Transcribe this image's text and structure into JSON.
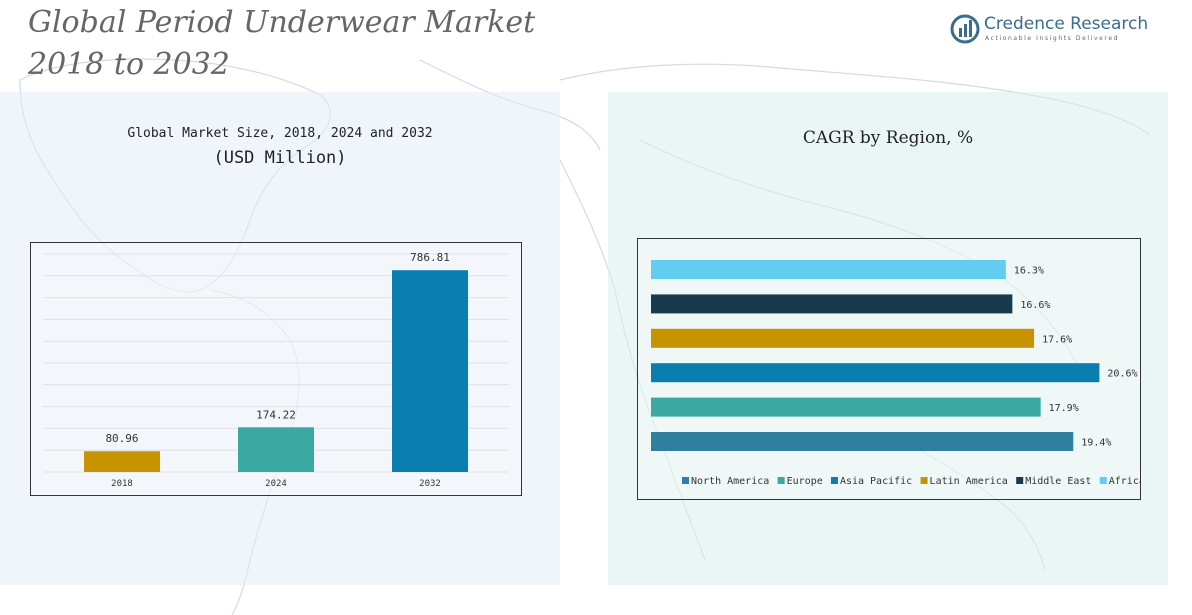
{
  "header": {
    "title_line1": "Global Period Underwear Market",
    "title_line2": "2018 to 2032",
    "logo_name": "Credence Research",
    "logo_tagline": "Actionable Insights Delivered"
  },
  "left_panel": {
    "subtitle1": "Global Market Size, 2018, 2024 and 2032",
    "subtitle2": "(USD Million)"
  },
  "right_panel": {
    "subtitle": "CAGR by Region, %"
  },
  "chart_data": [
    {
      "type": "bar",
      "title": "Global Market Size, 2018, 2024 and 2032",
      "subtitle": "(USD Million)",
      "categories": [
        "2018",
        "2024",
        "2032"
      ],
      "values": [
        80.96,
        174.22,
        786.81
      ],
      "value_labels": [
        "80.96",
        "174.22",
        "786.81"
      ],
      "colors": [
        "#c79400",
        "#3aa9a1",
        "#0a7eb1"
      ],
      "ylim": [
        0,
        850
      ],
      "grid": true,
      "xlabel": "",
      "ylabel": ""
    },
    {
      "type": "bar",
      "orientation": "horizontal",
      "title": "CAGR by Region, %",
      "categories": [
        "North America",
        "Europe",
        "Asia Pacific",
        "Latin America",
        "Middle East",
        "Africa"
      ],
      "values": [
        19.4,
        17.9,
        20.6,
        17.6,
        16.6,
        16.3
      ],
      "value_labels": [
        "19.4%",
        "17.9%",
        "20.6%",
        "17.6%",
        "16.6%",
        "16.3%"
      ],
      "colors": [
        "#2f7f9e",
        "#3aa9a1",
        "#0a7eb1",
        "#c79400",
        "#173a4c",
        "#62ccf1"
      ],
      "xlim": [
        0,
        21.5
      ],
      "legend": "bottom",
      "grid": false
    }
  ]
}
